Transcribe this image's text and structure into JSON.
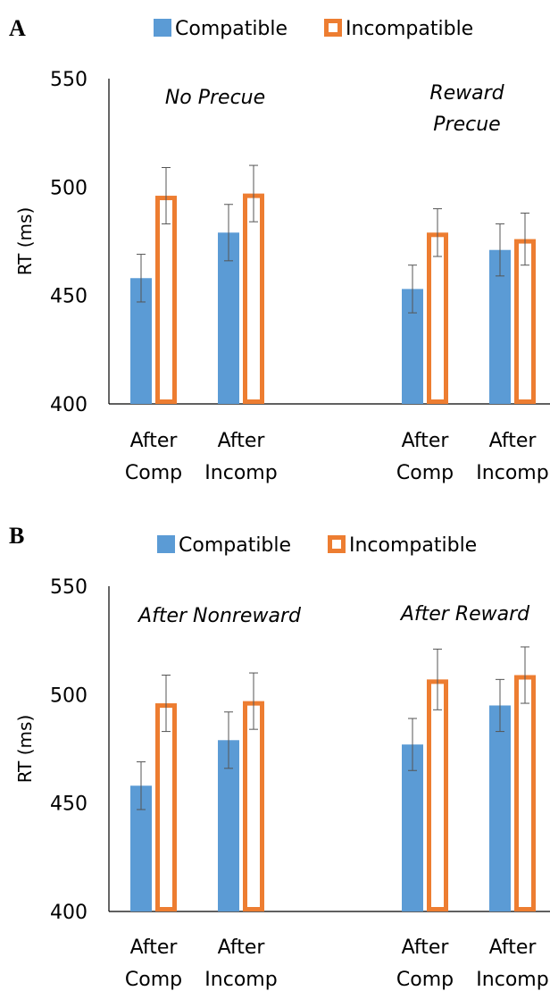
{
  "chart_data": [
    {
      "panel": "A",
      "type": "bar",
      "ylabel": "RT (ms)",
      "ylim": [
        400,
        550
      ],
      "yticks": [
        400,
        450,
        500,
        550
      ],
      "grid": false,
      "legend_position": "top",
      "series": [
        {
          "name": "Compatible",
          "color": "#5b9bd5",
          "style": "filled",
          "values": [
            458,
            479,
            453,
            471
          ],
          "errors": [
            11,
            13,
            11,
            12
          ]
        },
        {
          "name": "Incompatible",
          "color": "#ed7d31",
          "style": "outlined",
          "values": [
            496,
            497,
            479,
            476
          ],
          "errors": [
            13,
            13,
            11,
            12
          ]
        }
      ],
      "categories": [
        {
          "line1": "After",
          "line2": "Comp"
        },
        {
          "line1": "After",
          "line2": "Incomp"
        },
        {
          "line1": "After",
          "line2": "Comp"
        },
        {
          "line1": "After",
          "line2": "Incomp"
        }
      ],
      "annotations": [
        {
          "lines": [
            "No Precue"
          ],
          "group": 0
        },
        {
          "lines": [
            "Reward",
            "Precue"
          ],
          "group": 1
        }
      ]
    },
    {
      "panel": "B",
      "type": "bar",
      "ylabel": "RT (ms)",
      "ylim": [
        400,
        550
      ],
      "yticks": [
        400,
        450,
        500,
        550
      ],
      "grid": false,
      "legend_position": "top",
      "series": [
        {
          "name": "Compatible",
          "color": "#5b9bd5",
          "style": "filled",
          "values": [
            458,
            479,
            477,
            495
          ],
          "errors": [
            11,
            13,
            12,
            12
          ]
        },
        {
          "name": "Incompatible",
          "color": "#ed7d31",
          "style": "outlined",
          "values": [
            496,
            497,
            507,
            509
          ],
          "errors": [
            13,
            13,
            14,
            13
          ]
        }
      ],
      "categories": [
        {
          "line1": "After",
          "line2": "Comp"
        },
        {
          "line1": "After",
          "line2": "Incomp"
        },
        {
          "line1": "After",
          "line2": "Comp"
        },
        {
          "line1": "After",
          "line2": "Incomp"
        }
      ],
      "annotations": [
        {
          "lines": [
            "After Nonreward"
          ],
          "group": 0
        },
        {
          "lines": [
            "After Reward"
          ],
          "group": 1
        }
      ]
    }
  ]
}
